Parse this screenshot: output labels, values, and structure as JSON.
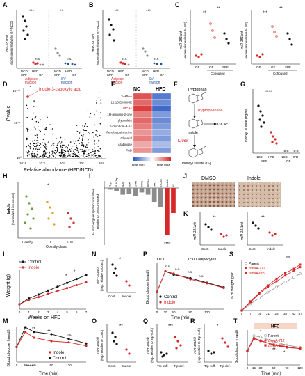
{
  "colors": {
    "ncd": "#111111",
    "hfd": "#d62828",
    "gf": "#8c8c8c",
    "adipose": "#d62828",
    "sv": "#1f4fa0",
    "heat_low": "#2b59c3",
    "heat_high": "#d62828",
    "indole": "#d62828",
    "control": "#111111",
    "parent": "#9a9a9a",
    "guideline": "#333333"
  },
  "panel_labels": [
    "A",
    "B",
    "C",
    "D",
    "E",
    "F",
    "G",
    "H",
    "I",
    "J",
    "K",
    "L",
    "M",
    "N",
    "O",
    "P",
    "Q",
    "R",
    "S",
    "T"
  ],
  "stars": {
    "A1": "***",
    "A2": "**",
    "A_ns1": "n.s.",
    "A_ns2": "n.s.",
    "B1": "**",
    "B2": "***",
    "B_ns1": "n.s.",
    "B_ns2": "n.s.",
    "C1a": "**",
    "C1b": "**",
    "C2a": "***",
    "C2b": "**",
    "G": "****",
    "H": "*",
    "I": "****",
    "K1": "**",
    "K2": "**",
    "N": "*",
    "O": "**",
    "Q": "***",
    "R": "*",
    "L1": "*",
    "L2": "*",
    "M1": "**",
    "M2": "**",
    "M3": "n.s.",
    "M4": "****",
    "P1": "n.s.",
    "P2": "n.s.",
    "P3": "n.s.",
    "P4": "n.s.",
    "T1": "*",
    "T2": "**",
    "T3": "*",
    "S": "***"
  },
  "texts": {
    "A_ylabel1": "mir-181b/d",
    "A_ylabel2": "(expression relative to GF-NCD)",
    "A_x": [
      "NCD",
      "HFD",
      "NCD",
      "HFD"
    ],
    "A_x2": [
      "SPF",
      "GF",
      "SPF",
      "GF"
    ],
    "adipose_fraction": "Adipose\nfraction",
    "sv_fraction": "SV\nfraction",
    "adipose_line1": "Adipose",
    "adipose_line2": "fraction",
    "sv_line1": "SV",
    "sv_line2": "fraction",
    "B_ylabel1": "miR-181a/b",
    "B_ylabel2": "(expression relative to GF-NCD)",
    "C_ylabel1": "miR-181a/d",
    "C_ylabel2": "(expression relative to GF)",
    "C2_ylabel1": "miR-181b/d",
    "C2_ylabel2": "(expression relative to GF)",
    "C_x": [
      "GF",
      "GF",
      "SPF"
    ],
    "cohoused": "Cohoused",
    "D_annot": "Indole-3-caboxylic acid",
    "D_ylabel_p": "P",
    "D_ylabel_v": "value",
    "D_xlabel": "Relative abundance (HFD/NCD)",
    "D_xticks": [
      "10⁻⁴",
      "10⁻²",
      "10⁰",
      "10²",
      "10⁴"
    ],
    "D_yticks": [
      "10⁻¹⁰",
      "10⁻⁵",
      "10⁰"
    ],
    "E_nc": "NC",
    "E_hfd": "HFD",
    "E_rows": [
      "3-HPAA",
      "12,13-DiHOME",
      "I3CAc",
      "1H-quinolin-2-one",
      "glyoxalate",
      "2-Oxindole-3-Ac",
      "Feruloylputrescine",
      "Glycerol",
      "Arabinose",
      "FAD"
    ],
    "E_rowmin": "Row min",
    "E_rowmax": "Row max",
    "F_tryptophan": "Tryptophan",
    "F_tryptophanase": "Tryptophanase",
    "F_indole": "Indole",
    "F_i3cac": "I3CAc",
    "F_liver": "Liver",
    "F_is": "Indoxyl sulfate (IS)",
    "G_ylabel": "Indoxyl sulfate (ng/ml)",
    "G_x": [
      "NCD",
      "HFD",
      "NCD",
      "HFD"
    ],
    "G_x2": [
      "SPF",
      "GF"
    ],
    "H_ylabel1": "Indole",
    "H_ylabel2": "(normalized ion counts)",
    "H_x": [
      "Healthy",
      "I",
      "II–III"
    ],
    "H_xlabel": "Obesity class",
    "I_ylabel1": "% of change in lipid accumulation",
    "I_ylabel2": "relative to DMSO-treated",
    "I_cats": [
      "Trp",
      "5-A-Trp",
      "ILA",
      "IAA",
      "5-HT",
      "KYN",
      "KYNA",
      "XA",
      "I3CAc",
      "Indole",
      "IS"
    ],
    "J_dmso": "DMSO",
    "J_indole": "Indole",
    "K_ylabel1": "miR-181a/b",
    "K_ylabel2": "miR-181b/d",
    "K_x": [
      "Cont.",
      "Indole"
    ],
    "L_ylabel": "Weight (g)",
    "L_xlabel": "Weeks on HFD",
    "L_xticks": [
      "0",
      "1",
      "2",
      "3",
      "4",
      "5",
      "6",
      "7"
    ],
    "legend_control": "Control",
    "legend_indole": "Indole",
    "M_ylabel": "Blood glucose (mg/dl)",
    "M_xlabel": "Time (min)",
    "M_xticks": [
      "0",
      "30",
      "60",
      "90",
      "120"
    ],
    "N_ylabel1": "miR-181a/b",
    "N_ylabel2": "(Exp. relative to Cont.)",
    "N_x": [
      "Cont.",
      "Indole"
    ],
    "O_ylabel1": "miR-181b/d",
    "O_ylabel2": "(exp. relative to Cont.)",
    "O_x": [
      "Cont.",
      "Indole"
    ],
    "P_title": "OTT",
    "P_title2": "TcKO adipocytes",
    "P_ylabel": "Blood glucose (mg/dl)",
    "P_xlabel": "Time (min)",
    "P_xticks": [
      "0",
      "30",
      "60",
      "90",
      "120"
    ],
    "Q_ylabel1": "miR-181a/b",
    "Q_ylabel2": "(exp. relative to Trp-suff.)",
    "Q_x": [
      "Trp-suff.",
      "Trp-def."
    ],
    "R_ylabel1": "miR-181b/d",
    "R_ylabel2": "(exp. relative to Trp-suff.)",
    "R_x": [
      "Trp-suff.",
      "Trp-def."
    ],
    "S_ylabel": "% of weight gain",
    "S_xticks": [
      "0",
      "7",
      "14",
      "21",
      "28",
      "35",
      "42",
      "47"
    ],
    "legend_parent": "Parent",
    "legend_tnaA712": "ΔtnaA-712",
    "legend_tnaA669": "ΔtnaA-669",
    "T_ylabel": "Blood glucose (mg/dl)",
    "T_xlabel": "Time (min)",
    "T_xticks": [
      "0",
      "15",
      "30",
      "60",
      "90",
      "120"
    ],
    "T_hfd": "HFD"
  },
  "chart_data": [
    {
      "id": "L",
      "type": "line",
      "xlabel": "Weeks on HFD",
      "ylabel": "Weight (g)",
      "ylim": [
        20,
        40
      ],
      "x": [
        0,
        1,
        2,
        3,
        4,
        5,
        6,
        7
      ],
      "series": [
        {
          "name": "Control",
          "values": [
            22.5,
            25.5,
            27.5,
            29.5,
            31.5,
            33.5,
            35.5,
            37.5
          ]
        },
        {
          "name": "Indole",
          "values": [
            22.5,
            24.8,
            26.2,
            27.8,
            29.3,
            30.8,
            32.3,
            33.8
          ]
        }
      ]
    },
    {
      "id": "M",
      "type": "line",
      "xlabel": "Time (min)",
      "ylabel": "Blood glucose (mg/dl)",
      "ylim": [
        0,
        300
      ],
      "x": [
        0,
        15,
        30,
        60,
        90,
        120
      ],
      "series": [
        {
          "name": "Control",
          "values": [
            130,
            300,
            260,
            240,
            200,
            160
          ]
        },
        {
          "name": "Indole",
          "values": [
            130,
            260,
            210,
            180,
            170,
            140
          ]
        }
      ]
    },
    {
      "id": "P",
      "type": "line",
      "xlabel": "Time (min)",
      "ylabel": "Blood glucose (mg/dl)",
      "ylim": [
        0,
        400
      ],
      "x": [
        0,
        15,
        30,
        60,
        90,
        120
      ],
      "series": [
        {
          "name": "Control",
          "values": [
            150,
            330,
            300,
            270,
            230,
            190
          ]
        },
        {
          "name": "Indole",
          "values": [
            150,
            330,
            310,
            260,
            225,
            185
          ]
        }
      ]
    },
    {
      "id": "T",
      "type": "line",
      "xlabel": "Time (min)",
      "ylabel": "Blood glucose (mg/dl)",
      "ylim": [
        0,
        300
      ],
      "x": [
        0,
        15,
        30,
        60,
        90,
        120
      ],
      "series": [
        {
          "name": "Parent",
          "values": [
            120,
            250,
            240,
            200,
            170,
            150
          ]
        },
        {
          "name": "ΔtnaA-712",
          "values": [
            120,
            230,
            210,
            170,
            150,
            140
          ]
        },
        {
          "name": "ΔtnaA-669",
          "values": [
            120,
            225,
            205,
            175,
            155,
            140
          ]
        }
      ]
    },
    {
      "id": "S",
      "type": "line",
      "ylabel": "% of weight gain",
      "ylim": [
        0,
        60
      ],
      "x": [
        0,
        7,
        14,
        21,
        28,
        35,
        42,
        47
      ],
      "series": [
        {
          "name": "Parent",
          "values": [
            0,
            8,
            15,
            22,
            28,
            34,
            40,
            44
          ]
        },
        {
          "name": "ΔtnaA-712",
          "values": [
            0,
            10,
            20,
            28,
            35,
            42,
            48,
            52
          ]
        },
        {
          "name": "ΔtnaA-669",
          "values": [
            0,
            11,
            21,
            30,
            38,
            45,
            50,
            55
          ]
        }
      ]
    },
    {
      "id": "I",
      "type": "bar",
      "ylabel": "% of change in lipid accumulation relative to DMSO-treated",
      "ylim": [
        -100,
        20
      ],
      "categories": [
        "Trp",
        "5-A-Trp",
        "ILA",
        "IAA",
        "5-HT",
        "KYN",
        "KYNA",
        "XA",
        "I3CAc",
        "Indole",
        "IS"
      ],
      "values": [
        -3,
        -5,
        -12,
        -10,
        -14,
        -8,
        -12,
        -25,
        -35,
        -85,
        -45
      ]
    },
    {
      "id": "E",
      "type": "heatmap",
      "columns": [
        "NC",
        "HFD"
      ],
      "rows": [
        "3-HPAA",
        "12,13-DiHOME",
        "I3CAc",
        "1H-quinolin-2-one",
        "glyoxalate",
        "2-Oxindole-3-Ac",
        "Feruloylputrescine",
        "Glycerol",
        "Arabinose",
        "FAD"
      ],
      "values": [
        [
          0.9,
          0.1
        ],
        [
          0.85,
          0.15
        ],
        [
          0.95,
          0.05
        ],
        [
          0.8,
          0.2
        ],
        [
          0.85,
          0.15
        ],
        [
          0.8,
          0.2
        ],
        [
          0.75,
          0.25
        ],
        [
          0.8,
          0.2
        ],
        [
          0.7,
          0.3
        ],
        [
          0.75,
          0.2
        ]
      ]
    }
  ]
}
